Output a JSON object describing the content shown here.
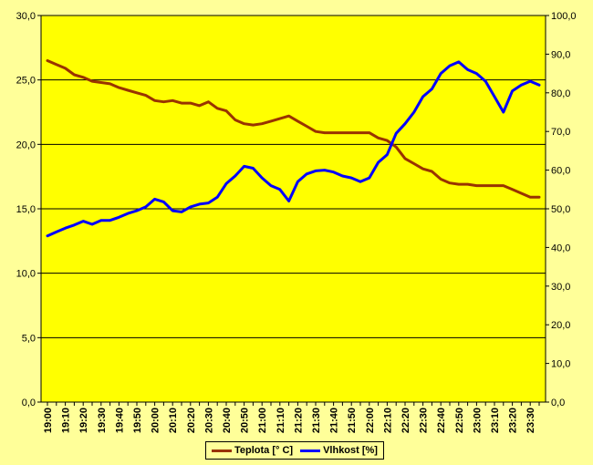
{
  "chart_data": {
    "type": "line",
    "x": [
      "19:00",
      "19:05",
      "19:10",
      "19:15",
      "19:20",
      "19:25",
      "19:30",
      "19:35",
      "19:40",
      "19:45",
      "19:50",
      "19:55",
      "20:00",
      "20:05",
      "20:10",
      "20:15",
      "20:20",
      "20:25",
      "20:30",
      "20:35",
      "20:40",
      "20:45",
      "20:50",
      "20:55",
      "21:00",
      "21:05",
      "21:10",
      "21:15",
      "21:20",
      "21:25",
      "21:30",
      "21:35",
      "21:40",
      "21:45",
      "21:50",
      "21:55",
      "22:00",
      "22:05",
      "22:10",
      "22:15",
      "22:20",
      "22:25",
      "22:30",
      "22:35",
      "22:40",
      "22:45",
      "22:50",
      "22:55",
      "23:00",
      "23:05",
      "23:10",
      "23:15",
      "23:20",
      "23:25",
      "23:30",
      "23:35"
    ],
    "x_tick_labels": [
      "19:00",
      "19:10",
      "19:20",
      "19:30",
      "19:40",
      "19:50",
      "20:00",
      "20:10",
      "20:20",
      "20:30",
      "20:40",
      "20:50",
      "21:00",
      "21:10",
      "21:20",
      "21:30",
      "21:40",
      "21:50",
      "22:00",
      "22:10",
      "22:20",
      "22:30",
      "22:40",
      "22:50",
      "23:00",
      "23:10",
      "23:20",
      "23:30"
    ],
    "series": [
      {
        "name": "Teplota [° C]",
        "axis": "left",
        "color": "#993300",
        "values": [
          26.5,
          26.2,
          25.9,
          25.4,
          25.2,
          24.9,
          24.8,
          24.7,
          24.4,
          24.2,
          24.0,
          23.8,
          23.4,
          23.3,
          23.4,
          23.2,
          23.2,
          23.0,
          23.3,
          22.8,
          22.6,
          21.9,
          21.6,
          21.5,
          21.6,
          21.8,
          22.0,
          22.2,
          21.8,
          21.4,
          21.0,
          20.9,
          20.9,
          20.9,
          20.9,
          20.9,
          20.9,
          20.5,
          20.3,
          19.8,
          18.9,
          18.5,
          18.1,
          17.9,
          17.3,
          17.0,
          16.9,
          16.9,
          16.8,
          16.8,
          16.8,
          16.8,
          16.5,
          16.2,
          15.9,
          15.9
        ]
      },
      {
        "name": "Vlhkost [%]",
        "axis": "right",
        "color": "#0000ff",
        "values": [
          43.0,
          44.0,
          45.0,
          45.8,
          46.8,
          46.0,
          47.0,
          47.0,
          47.8,
          48.8,
          49.5,
          50.5,
          52.5,
          51.8,
          49.5,
          49.2,
          50.5,
          51.2,
          51.5,
          53.0,
          56.5,
          58.5,
          61.0,
          60.5,
          58.0,
          56.0,
          55.0,
          52.0,
          57.0,
          59.0,
          59.8,
          60.0,
          59.5,
          58.5,
          58.0,
          57.0,
          58.0,
          62.0,
          64.0,
          69.5,
          72.0,
          75.0,
          79.0,
          81.0,
          85.0,
          87.0,
          88.0,
          86.0,
          85.0,
          83.0,
          79.0,
          75.0,
          80.5,
          82.0,
          83.0,
          82.0
        ]
      }
    ],
    "y_left": {
      "min": 0,
      "max": 30,
      "step": 5,
      "tick_labels": [
        "0,0",
        "5,0",
        "10,0",
        "15,0",
        "20,0",
        "25,0",
        "30,0"
      ]
    },
    "y_right": {
      "min": 0,
      "max": 100,
      "step": 10,
      "tick_labels": [
        "0,0",
        "10,0",
        "20,0",
        "30,0",
        "40,0",
        "50,0",
        "60,0",
        "70,0",
        "80,0",
        "90,0",
        "100,0"
      ]
    },
    "grid": "horizontal lines at left-axis ticks",
    "legend_position": "bottom-center",
    "background": "#ffff00",
    "outer_background": "#ffff99"
  },
  "legend": {
    "temp_label": "Teplota [° C]",
    "humidity_label": "Vlhkost [%]"
  }
}
